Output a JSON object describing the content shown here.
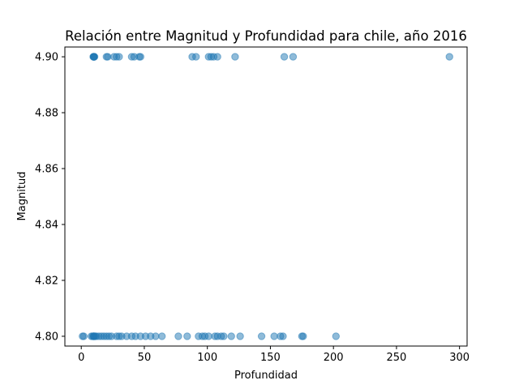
{
  "chart_data": {
    "type": "scatter",
    "title": "Relación entre Magnitud y Profundidad para chile, año 2016",
    "xlabel": "Profundidad",
    "ylabel": "Magnitud",
    "xlim": [
      -13,
      306
    ],
    "ylim": [
      4.7965,
      4.9035
    ],
    "xticks": [
      0,
      50,
      100,
      150,
      200,
      250,
      300
    ],
    "yticks": [
      4.8,
      4.82,
      4.84,
      4.86,
      4.88,
      4.9
    ],
    "xtick_labels": [
      "0",
      "50",
      "100",
      "150",
      "200",
      "250",
      "300"
    ],
    "ytick_labels": [
      "4.80",
      "4.82",
      "4.84",
      "4.86",
      "4.88",
      "4.90"
    ],
    "grid": false,
    "marker_color": "#1f77b4",
    "marker_alpha": 0.5,
    "series": [
      {
        "points": [
          {
            "x": 10,
            "y": 4.9
          },
          {
            "x": 10,
            "y": 4.9
          },
          {
            "x": 10,
            "y": 4.9
          },
          {
            "x": 9.5,
            "y": 4.9
          },
          {
            "x": 10.5,
            "y": 4.9
          },
          {
            "x": 10,
            "y": 4.9
          },
          {
            "x": 20,
            "y": 4.9
          },
          {
            "x": 21,
            "y": 4.9
          },
          {
            "x": 26,
            "y": 4.9
          },
          {
            "x": 28,
            "y": 4.9
          },
          {
            "x": 30,
            "y": 4.9
          },
          {
            "x": 40,
            "y": 4.9
          },
          {
            "x": 42,
            "y": 4.9
          },
          {
            "x": 46,
            "y": 4.9
          },
          {
            "x": 47,
            "y": 4.9
          },
          {
            "x": 88,
            "y": 4.9
          },
          {
            "x": 91,
            "y": 4.9
          },
          {
            "x": 101,
            "y": 4.9
          },
          {
            "x": 103,
            "y": 4.9
          },
          {
            "x": 105,
            "y": 4.9
          },
          {
            "x": 108,
            "y": 4.9
          },
          {
            "x": 122,
            "y": 4.9
          },
          {
            "x": 161,
            "y": 4.9
          },
          {
            "x": 168,
            "y": 4.9
          },
          {
            "x": 292,
            "y": 4.9
          },
          {
            "x": 1,
            "y": 4.8
          },
          {
            "x": 2,
            "y": 4.8
          },
          {
            "x": 8,
            "y": 4.8
          },
          {
            "x": 9,
            "y": 4.8
          },
          {
            "x": 10,
            "y": 4.8
          },
          {
            "x": 10,
            "y": 4.8
          },
          {
            "x": 10,
            "y": 4.8
          },
          {
            "x": 11,
            "y": 4.8
          },
          {
            "x": 12,
            "y": 4.8
          },
          {
            "x": 14,
            "y": 4.8
          },
          {
            "x": 16,
            "y": 4.8
          },
          {
            "x": 18,
            "y": 4.8
          },
          {
            "x": 20,
            "y": 4.8
          },
          {
            "x": 22,
            "y": 4.8
          },
          {
            "x": 24,
            "y": 4.8
          },
          {
            "x": 28,
            "y": 4.8
          },
          {
            "x": 30,
            "y": 4.8
          },
          {
            "x": 32,
            "y": 4.8
          },
          {
            "x": 36,
            "y": 4.8
          },
          {
            "x": 40,
            "y": 4.8
          },
          {
            "x": 43,
            "y": 4.8
          },
          {
            "x": 47,
            "y": 4.8
          },
          {
            "x": 51,
            "y": 4.8
          },
          {
            "x": 55,
            "y": 4.8
          },
          {
            "x": 59,
            "y": 4.8
          },
          {
            "x": 64,
            "y": 4.8
          },
          {
            "x": 77,
            "y": 4.8
          },
          {
            "x": 84,
            "y": 4.8
          },
          {
            "x": 93,
            "y": 4.8
          },
          {
            "x": 96,
            "y": 4.8
          },
          {
            "x": 98,
            "y": 4.8
          },
          {
            "x": 101,
            "y": 4.8
          },
          {
            "x": 106,
            "y": 4.8
          },
          {
            "x": 108,
            "y": 4.8
          },
          {
            "x": 111,
            "y": 4.8
          },
          {
            "x": 113,
            "y": 4.8
          },
          {
            "x": 119,
            "y": 4.8
          },
          {
            "x": 126,
            "y": 4.8
          },
          {
            "x": 143,
            "y": 4.8
          },
          {
            "x": 153,
            "y": 4.8
          },
          {
            "x": 158,
            "y": 4.8
          },
          {
            "x": 160,
            "y": 4.8
          },
          {
            "x": 175,
            "y": 4.8
          },
          {
            "x": 176,
            "y": 4.8
          },
          {
            "x": 202,
            "y": 4.8
          }
        ]
      }
    ]
  }
}
